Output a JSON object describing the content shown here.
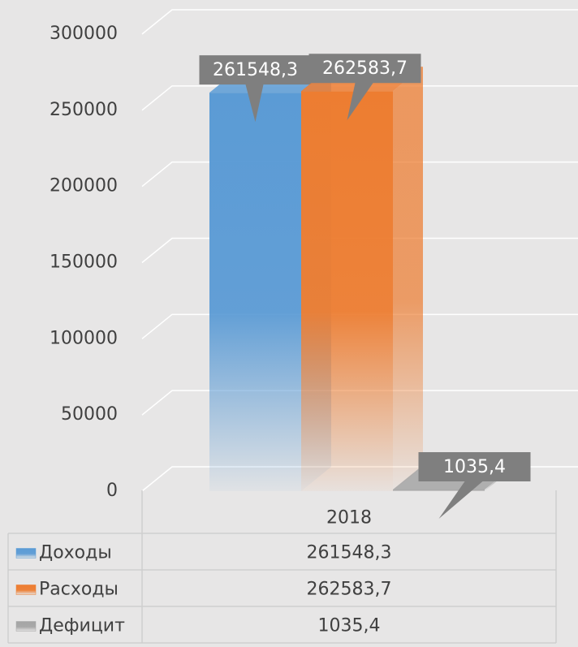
{
  "chart_data": {
    "type": "bar3d",
    "categories": [
      "2018"
    ],
    "series": [
      {
        "name": "Доходы",
        "color": "#5b9bd5",
        "values": [
          261548.3
        ],
        "value_labels": [
          "261548,3"
        ]
      },
      {
        "name": "Расходы",
        "color": "#ed7d31",
        "values": [
          262583.7
        ],
        "value_labels": [
          "262583,7"
        ]
      },
      {
        "name": "Дефицит",
        "color": "#a5a5a5",
        "values": [
          1035.4
        ],
        "value_labels": [
          "1035,4"
        ]
      }
    ],
    "ylim": [
      0,
      300000
    ],
    "yticks": [
      0,
      50000,
      100000,
      150000,
      200000,
      250000,
      300000
    ],
    "grid": true,
    "data_table": true
  }
}
